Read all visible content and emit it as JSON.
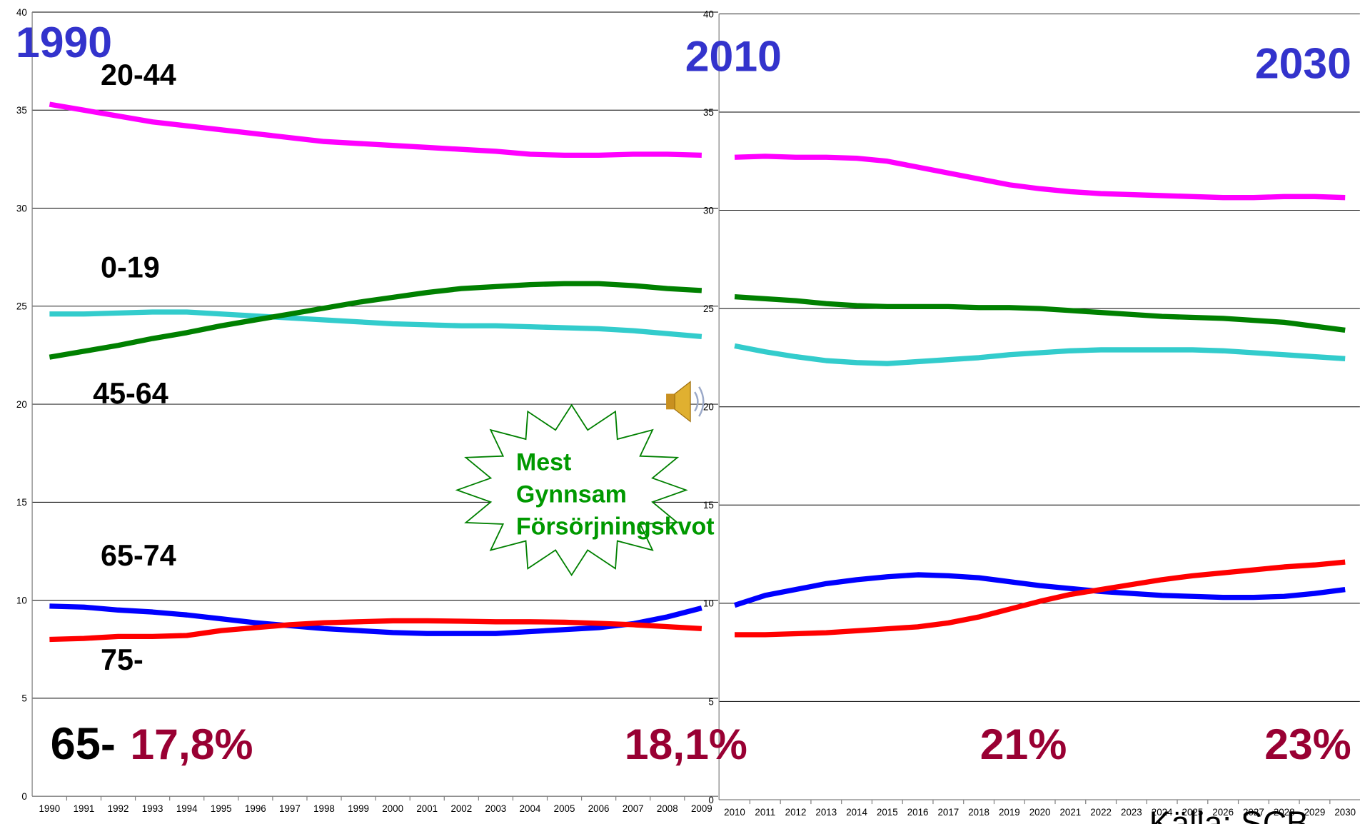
{
  "chart_data": [
    {
      "type": "line",
      "categories": [
        "1990",
        "1991",
        "1992",
        "1993",
        "1994",
        "1995",
        "1996",
        "1997",
        "1998",
        "1999",
        "2000",
        "2001",
        "2002",
        "2003",
        "2004",
        "2005",
        "2006",
        "2007",
        "2008",
        "2009"
      ],
      "ylim": [
        0,
        40
      ],
      "yticks": [
        0,
        5,
        10,
        15,
        20,
        25,
        30,
        35,
        40
      ],
      "grid": true,
      "series": [
        {
          "name": "20-44",
          "color": "#ff00ff",
          "values": [
            35.3,
            35.0,
            34.7,
            34.4,
            34.2,
            34.0,
            33.8,
            33.6,
            33.4,
            33.3,
            33.2,
            33.1,
            33.0,
            32.9,
            32.75,
            32.7,
            32.7,
            32.75,
            32.75,
            32.7
          ]
        },
        {
          "name": "0-19",
          "color": "#33cccc",
          "values": [
            24.6,
            24.6,
            24.65,
            24.7,
            24.7,
            24.6,
            24.5,
            24.4,
            24.3,
            24.2,
            24.1,
            24.05,
            24.0,
            24.0,
            23.95,
            23.9,
            23.85,
            23.75,
            23.6,
            23.45
          ]
        },
        {
          "name": "45-64",
          "color": "#008000",
          "values": [
            22.4,
            22.7,
            23.0,
            23.35,
            23.65,
            24.0,
            24.3,
            24.6,
            24.9,
            25.2,
            25.45,
            25.7,
            25.9,
            26.0,
            26.1,
            26.15,
            26.15,
            26.05,
            25.9,
            25.8
          ]
        },
        {
          "name": "65-74",
          "color": "#0000ff",
          "values": [
            9.7,
            9.65,
            9.5,
            9.4,
            9.25,
            9.05,
            8.85,
            8.7,
            8.55,
            8.45,
            8.35,
            8.3,
            8.3,
            8.3,
            8.4,
            8.5,
            8.6,
            8.8,
            9.15,
            9.6
          ]
        },
        {
          "name": "75-",
          "color": "#ff0000",
          "values": [
            8.0,
            8.05,
            8.15,
            8.15,
            8.2,
            8.45,
            8.6,
            8.75,
            8.85,
            8.9,
            8.95,
            8.95,
            8.93,
            8.9,
            8.9,
            8.88,
            8.82,
            8.75,
            8.65,
            8.55
          ]
        }
      ]
    },
    {
      "type": "line",
      "categories": [
        "2010",
        "2011",
        "2012",
        "2013",
        "2014",
        "2015",
        "2016",
        "2017",
        "2018",
        "2019",
        "2020",
        "2021",
        "2022",
        "2023",
        "2024",
        "2025",
        "2026",
        "2027",
        "2028",
        "2029",
        "2030"
      ],
      "ylim": [
        0,
        40
      ],
      "yticks": [
        0,
        5,
        10,
        15,
        20,
        25,
        30,
        35,
        40
      ],
      "grid": true,
      "series": [
        {
          "color": "#ff00ff",
          "values": [
            32.7,
            32.75,
            32.7,
            32.7,
            32.65,
            32.5,
            32.2,
            31.9,
            31.6,
            31.3,
            31.1,
            30.95,
            30.85,
            30.8,
            30.75,
            30.7,
            30.65,
            30.65,
            30.7,
            30.7,
            30.65
          ]
        },
        {
          "color": "#33cccc",
          "values": [
            23.1,
            22.8,
            22.55,
            22.35,
            22.25,
            22.2,
            22.3,
            22.4,
            22.5,
            22.65,
            22.75,
            22.85,
            22.9,
            22.9,
            22.9,
            22.9,
            22.85,
            22.75,
            22.65,
            22.55,
            22.45
          ]
        },
        {
          "color": "#008000",
          "values": [
            25.6,
            25.5,
            25.4,
            25.25,
            25.15,
            25.1,
            25.1,
            25.1,
            25.05,
            25.05,
            25.0,
            24.9,
            24.8,
            24.7,
            24.6,
            24.55,
            24.5,
            24.4,
            24.3,
            24.1,
            23.9
          ]
        },
        {
          "color": "#0000ff",
          "values": [
            9.9,
            10.4,
            10.7,
            11.0,
            11.2,
            11.35,
            11.45,
            11.4,
            11.3,
            11.1,
            10.9,
            10.75,
            10.6,
            10.5,
            10.4,
            10.35,
            10.3,
            10.3,
            10.35,
            10.5,
            10.7
          ]
        },
        {
          "color": "#ff0000",
          "values": [
            8.4,
            8.4,
            8.45,
            8.5,
            8.6,
            8.7,
            8.8,
            9.0,
            9.3,
            9.7,
            10.1,
            10.45,
            10.7,
            10.95,
            11.2,
            11.4,
            11.55,
            11.7,
            11.85,
            11.95,
            12.1
          ]
        }
      ]
    }
  ],
  "annotations": {
    "years": [
      "1990",
      "2010",
      "2030"
    ],
    "group": "65-",
    "shares": [
      "17,8%",
      "18,1%",
      "21%",
      "23%"
    ],
    "burst": [
      "Mest",
      "Gynnsam",
      "Försörjningskvot"
    ],
    "source": "Källa: SCB"
  }
}
